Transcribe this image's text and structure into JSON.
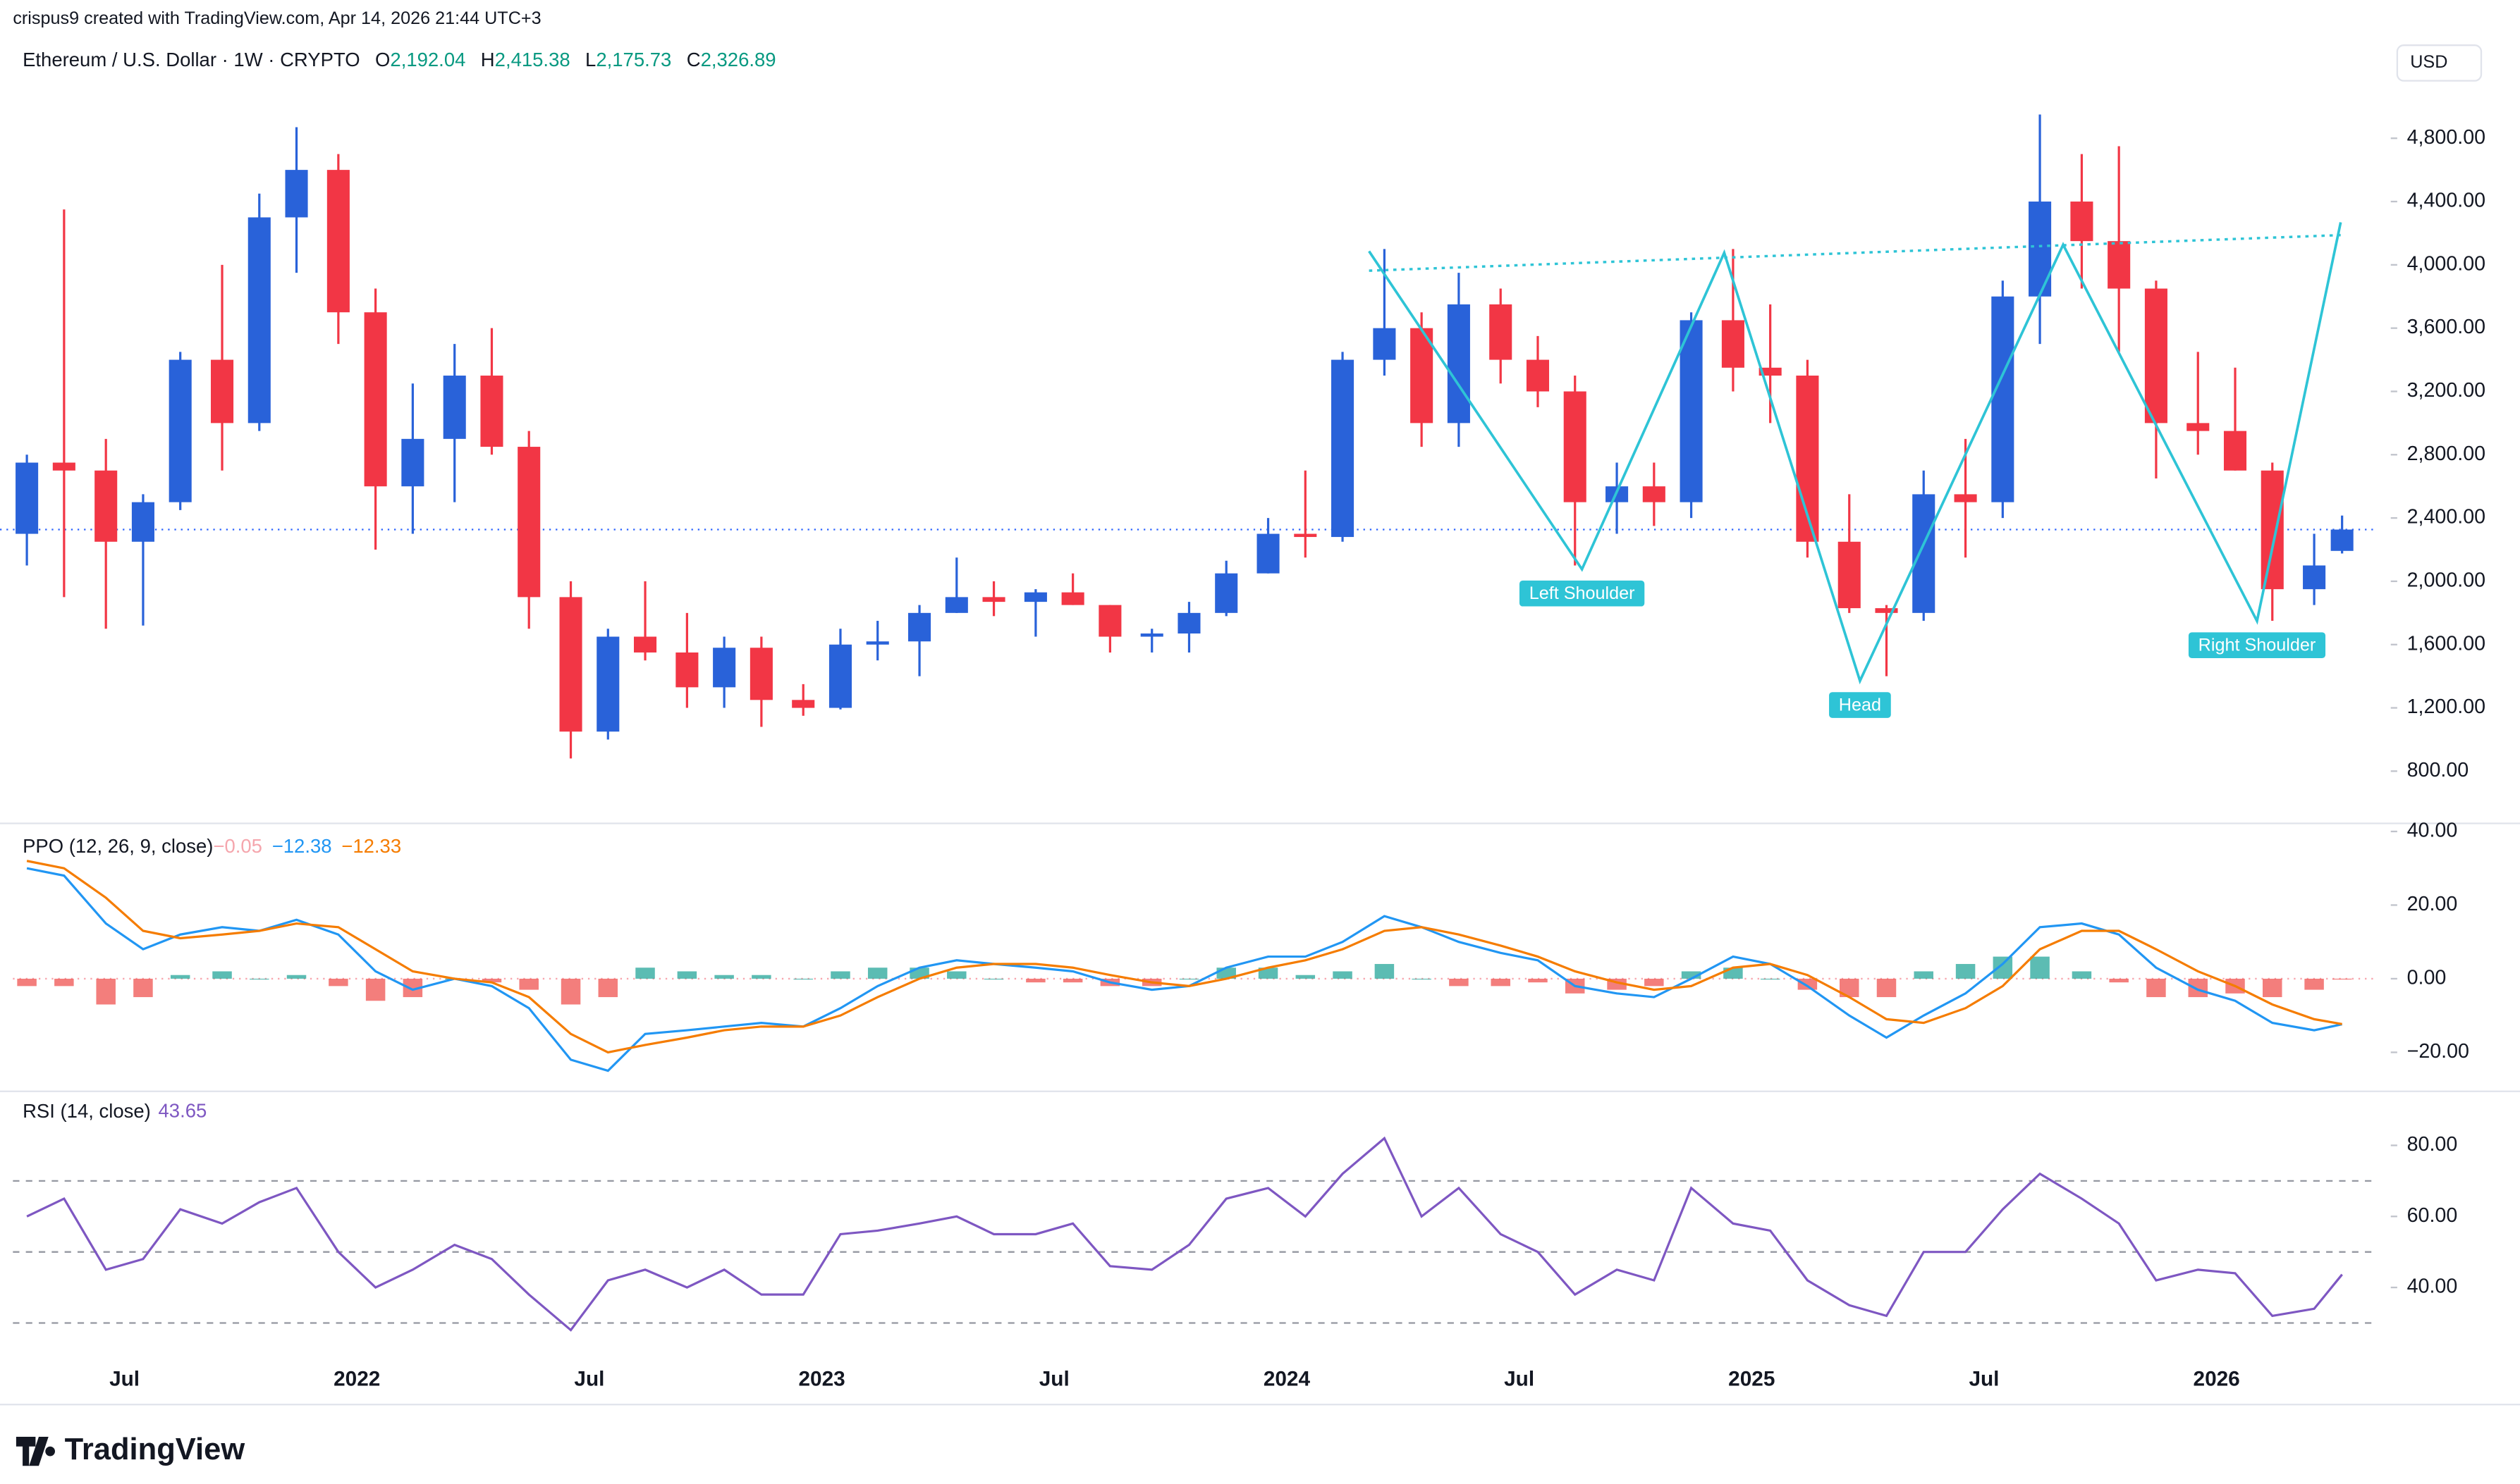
{
  "header": {
    "credit": "crispus9 created with TradingView.com, Apr 14, 2026 21:44 UTC+3",
    "symbol": "Ethereum / U.S. Dollar · 1W · CRYPTO",
    "ohlc": [
      {
        "key": "O",
        "text": "2,192.04"
      },
      {
        "key": "H",
        "text": "2,415.38"
      },
      {
        "key": "L",
        "text": "2,175.73"
      },
      {
        "key": "C",
        "text": "2,326.89"
      }
    ],
    "currency": "USD"
  },
  "footer": {
    "logo": "TradingView"
  },
  "chart_data": [
    {
      "type": "candlestick",
      "up_color": "#2962d9",
      "down_color": "#f23645",
      "x": [
        2021.29,
        2021.37,
        2021.46,
        2021.54,
        2021.62,
        2021.71,
        2021.79,
        2021.87,
        2021.96,
        2022.04,
        2022.12,
        2022.21,
        2022.29,
        2022.37,
        2022.46,
        2022.54,
        2022.62,
        2022.71,
        2022.79,
        2022.87,
        2022.96,
        2023.04,
        2023.12,
        2023.21,
        2023.29,
        2023.37,
        2023.46,
        2023.54,
        2023.62,
        2023.71,
        2023.79,
        2023.87,
        2023.96,
        2024.04,
        2024.12,
        2024.21,
        2024.29,
        2024.37,
        2024.46,
        2024.54,
        2024.62,
        2024.71,
        2024.79,
        2024.87,
        2024.96,
        2025.04,
        2025.12,
        2025.21,
        2025.29,
        2025.37,
        2025.46,
        2025.54,
        2025.62,
        2025.71,
        2025.79,
        2025.87,
        2025.96,
        2026.04,
        2026.12,
        2026.21,
        2026.27
      ],
      "open": [
        2300,
        2750,
        2700,
        2250,
        2500,
        3400,
        3000,
        4300,
        4600,
        3700,
        2600,
        2900,
        3300,
        2850,
        1900,
        1050,
        1650,
        1550,
        1330,
        1580,
        1250,
        1200,
        1600,
        1620,
        1800,
        1900,
        1870,
        1930,
        1850,
        1650,
        1670,
        1800,
        2050,
        2300,
        2280,
        3400,
        3600,
        3000,
        3750,
        3400,
        3200,
        2500,
        2600,
        2500,
        3650,
        3350,
        3300,
        2250,
        1830,
        1800,
        2550,
        2500,
        3800,
        4400,
        4150,
        3850,
        3000,
        2950,
        2700,
        1950,
        2192.04
      ],
      "high": [
        2800,
        4350,
        2900,
        2550,
        3450,
        4000,
        4450,
        4870,
        4700,
        3850,
        3250,
        3500,
        3600,
        2950,
        2000,
        1700,
        2000,
        1800,
        1650,
        1650,
        1350,
        1700,
        1750,
        1850,
        2150,
        2000,
        1950,
        2050,
        1850,
        1700,
        1870,
        2130,
        2400,
        2700,
        3450,
        4100,
        3700,
        3950,
        3850,
        3550,
        3300,
        2750,
        2750,
        3700,
        4100,
        3750,
        3400,
        2550,
        1850,
        2700,
        2900,
        3900,
        4950,
        4700,
        4750,
        3900,
        3450,
        3350,
        2750,
        2300,
        2415.38
      ],
      "low": [
        2100,
        1900,
        1700,
        1720,
        2450,
        2700,
        2950,
        3950,
        3500,
        2200,
        2300,
        2500,
        2800,
        1700,
        880,
        1000,
        1500,
        1200,
        1200,
        1080,
        1150,
        1190,
        1500,
        1400,
        1800,
        1780,
        1650,
        1850,
        1550,
        1550,
        1550,
        1780,
        2050,
        2150,
        2250,
        3300,
        2850,
        2850,
        3250,
        3100,
        2100,
        2300,
        2350,
        2400,
        3200,
        3000,
        2150,
        1800,
        1400,
        1750,
        2150,
        2400,
        3500,
        3850,
        3450,
        2650,
        2800,
        2700,
        1750,
        1850,
        2175.73
      ],
      "close": [
        2750,
        2700,
        2250,
        2500,
        3400,
        3000,
        4300,
        4600,
        3700,
        2600,
        2900,
        3300,
        2850,
        1900,
        1050,
        1650,
        1550,
        1330,
        1580,
        1250,
        1200,
        1600,
        1620,
        1800,
        1900,
        1870,
        1930,
        1850,
        1650,
        1670,
        1800,
        2050,
        2300,
        2280,
        3400,
        3600,
        3000,
        3750,
        3400,
        3200,
        2500,
        2600,
        2500,
        3650,
        3350,
        3300,
        2250,
        1830,
        1800,
        2550,
        2500,
        3800,
        4400,
        4150,
        3850,
        3000,
        2950,
        2700,
        1950,
        2100,
        2326.89
      ],
      "xlim": [
        2021.26,
        2026.34
      ],
      "ylim": [
        470,
        5490
      ],
      "xticks": [
        {
          "value": 2021.5,
          "label": "Jul"
        },
        {
          "value": 2022,
          "label": "2022"
        },
        {
          "value": 2022.5,
          "label": "Jul"
        },
        {
          "value": 2023,
          "label": "2023"
        },
        {
          "value": 2023.5,
          "label": "Jul"
        },
        {
          "value": 2024,
          "label": "2024"
        },
        {
          "value": 2024.5,
          "label": "Jul"
        },
        {
          "value": 2025,
          "label": "2025"
        },
        {
          "value": 2025.5,
          "label": "Jul"
        },
        {
          "value": 2026,
          "label": "2026"
        }
      ],
      "yticks": [
        {
          "value": 800,
          "label": "800.00"
        },
        {
          "value": 1200,
          "label": "1,200.00"
        },
        {
          "value": 1600,
          "label": "1,600.00"
        },
        {
          "value": 2000,
          "label": "2,000.00"
        },
        {
          "value": 2400,
          "label": "2,400.00"
        },
        {
          "value": 2800,
          "label": "2,800.00"
        },
        {
          "value": 3200,
          "label": "3,200.00"
        },
        {
          "value": 3600,
          "label": "3,600.00"
        },
        {
          "value": 4000,
          "label": "4,000.00"
        },
        {
          "value": 4400,
          "label": "4,400.00"
        },
        {
          "value": 4800,
          "label": "4,800.00"
        }
      ],
      "pattern_color": "#2ec4d6",
      "pattern_points": [
        {
          "x": 2024.177,
          "y": 4086
        },
        {
          "x": 2024.635,
          "y": 2076,
          "label": "Left Shoulder"
        },
        {
          "x": 2024.941,
          "y": 4076
        },
        {
          "x": 2025.233,
          "y": 1371,
          "label": "Head"
        },
        {
          "x": 2025.67,
          "y": 4127
        },
        {
          "x": 2026.087,
          "y": 1749,
          "label": "Right Shoulder"
        },
        {
          "x": 2026.267,
          "y": 4269
        }
      ],
      "neckline": [
        {
          "x": 2024.177,
          "y": 3963
        },
        {
          "x": 2026.267,
          "y": 4188
        }
      ]
    },
    {
      "type": "line",
      "title": "PPO (12, 26, 9, close)",
      "header_values": [
        {
          "text": "−0.05",
          "color": "#f5a6ad"
        },
        {
          "text": "−12.38",
          "color": "#2196f3"
        },
        {
          "text": "−12.33",
          "color": "#f57c00"
        }
      ],
      "series": [
        {
          "color": "#2196f3",
          "values": [
            30,
            28,
            15,
            8,
            12,
            14,
            13,
            16,
            12,
            2,
            -3,
            0,
            -2,
            -8,
            -22,
            -25,
            -15,
            -14,
            -13,
            -12,
            -13,
            -8,
            -2,
            3,
            5,
            4,
            3,
            2,
            -1,
            -3,
            -2,
            3,
            6,
            6,
            10,
            17,
            14,
            10,
            7,
            5,
            -2,
            -4,
            -5,
            0,
            6,
            4,
            -2,
            -10,
            -16,
            -10,
            -4,
            4,
            14,
            15,
            12,
            3,
            -3,
            -6,
            -12,
            -14,
            -12.38
          ]
        },
        {
          "color": "#f57c00",
          "values": [
            32,
            30,
            22,
            13,
            11,
            12,
            13,
            15,
            14,
            8,
            2,
            0,
            -1,
            -5,
            -15,
            -20,
            -18,
            -16,
            -14,
            -13,
            -13,
            -10,
            -5,
            0,
            3,
            4,
            4,
            3,
            1,
            -1,
            -2,
            0,
            3,
            5,
            8,
            13,
            14,
            12,
            9,
            6,
            2,
            -1,
            -3,
            -2,
            3,
            4,
            1,
            -5,
            -11,
            -12,
            -8,
            -2,
            8,
            13,
            13,
            8,
            2,
            -2,
            -7,
            -11,
            -12.33
          ]
        }
      ],
      "histogram": {
        "up_color": "#26a69a",
        "down_color": "#ef5350",
        "values": [
          -2,
          -2,
          -7,
          -5,
          1,
          2,
          0,
          1,
          -2,
          -6,
          -5,
          0,
          -1,
          -3,
          -7,
          -5,
          3,
          2,
          1,
          1,
          0,
          2,
          3,
          3,
          2,
          0,
          -1,
          -1,
          -2,
          -2,
          0,
          3,
          3,
          1,
          2,
          4,
          0,
          -2,
          -2,
          -1,
          -4,
          -3,
          -2,
          2,
          3,
          0,
          -3,
          -5,
          -5,
          2,
          4,
          6,
          6,
          2,
          -1,
          -5,
          -5,
          -4,
          -5,
          -3,
          -0.05
        ]
      },
      "ylim": [
        -30.6,
        42.2
      ],
      "yticks": [
        {
          "value": -20,
          "label": "−20.00"
        },
        {
          "value": 0,
          "label": "0.00"
        },
        {
          "value": 20,
          "label": "20.00"
        },
        {
          "value": 40,
          "label": "40.00"
        }
      ]
    },
    {
      "type": "line",
      "title": "RSI (14, close)",
      "header_values": [
        {
          "text": "43.65",
          "color": "#7e57c2"
        }
      ],
      "series": [
        {
          "color": "#7e57c2",
          "values": [
            60,
            65,
            45,
            48,
            62,
            58,
            64,
            68,
            50,
            40,
            45,
            52,
            48,
            38,
            28,
            42,
            45,
            40,
            45,
            38,
            38,
            55,
            56,
            58,
            60,
            55,
            55,
            58,
            46,
            45,
            52,
            65,
            68,
            60,
            72,
            82,
            60,
            68,
            55,
            50,
            38,
            45,
            42,
            68,
            58,
            56,
            42,
            35,
            32,
            50,
            50,
            62,
            72,
            65,
            58,
            42,
            45,
            44,
            32,
            34,
            43.65
          ]
        }
      ],
      "bands": [
        30,
        50,
        70
      ],
      "ylim": [
        18.4,
        94.3
      ],
      "yticks": [
        {
          "value": 40,
          "label": "40.00"
        },
        {
          "value": 60,
          "label": "60.00"
        },
        {
          "value": 80,
          "label": "80.00"
        }
      ]
    }
  ]
}
